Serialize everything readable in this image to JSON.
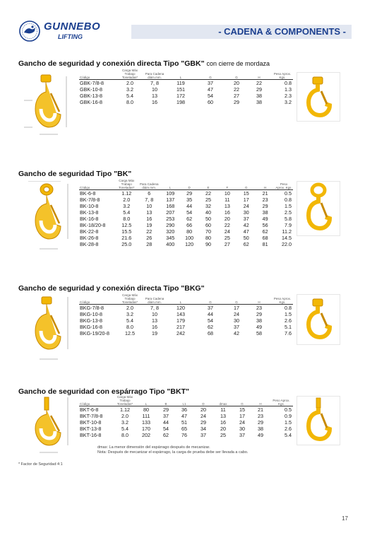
{
  "header": {
    "brand": "GUNNEBO",
    "brand_sub": "LIFTING",
    "banner": "- CADENA & COMPONENTS -"
  },
  "colors": {
    "hook_yellow": "#f2b705",
    "hook_dark": "#c88a00",
    "brand_blue": "#1b3f8f",
    "banner_bg": "#e2e7f1"
  },
  "sections": [
    {
      "title": "Gancho de seguridad y conexión directa Tipo \"GBK\"",
      "title_suffix": "con cierre de mordaza",
      "headers": [
        "Código",
        "Carga Máx Trabajo Toneladas*",
        "Para Cadena diám.mm.",
        "L",
        "G",
        "G",
        "H",
        "Peso Aprox. Kgs."
      ],
      "rows": [
        [
          "GBK-7/8-8",
          "2.0",
          "7, 8",
          "119",
          "37",
          "20",
          "22",
          "0.8"
        ],
        [
          "GBK-10-8",
          "3.2",
          "10",
          "151",
          "47",
          "22",
          "29",
          "1.3"
        ],
        [
          "GBK-13-8",
          "5.4",
          "13",
          "172",
          "54",
          "27",
          "38",
          "2.3"
        ],
        [
          "GBK-16-8",
          "8.0",
          "16",
          "198",
          "60",
          "29",
          "38",
          "3.2"
        ]
      ]
    },
    {
      "title": "Gancho de seguridad Tipo \"BK\"",
      "title_suffix": "",
      "headers": [
        "Código",
        "Carga Máx Trabajo Toneladas*",
        "Para Cadena diám.mm.",
        "L",
        "D",
        "E",
        "F",
        "G",
        "H",
        "Peso Aprox. Kgs."
      ],
      "rows": [
        [
          "BK-6-8",
          "1.12",
          "6",
          "109",
          "29",
          "22",
          "10",
          "15",
          "21",
          "0.5"
        ],
        [
          "BK-7/8-8",
          "2.0",
          "7, 8",
          "137",
          "35",
          "25",
          "11",
          "17",
          "23",
          "0.8"
        ],
        [
          "BK-10-8",
          "3.2",
          "10",
          "168",
          "44",
          "32",
          "13",
          "24",
          "29",
          "1.5"
        ],
        [
          "BK-13-8",
          "5.4",
          "13",
          "207",
          "54",
          "40",
          "16",
          "30",
          "38",
          "2.5"
        ],
        [
          "BK-16-8",
          "8.0",
          "16",
          "253",
          "62",
          "50",
          "20",
          "37",
          "49",
          "5.8"
        ],
        [
          "BK-18/20-8",
          "12.5",
          "19",
          "290",
          "66",
          "60",
          "22",
          "42",
          "56",
          "7.9"
        ],
        [
          "BK-22-8",
          "15.5",
          "22",
          "320",
          "80",
          "70",
          "24",
          "47",
          "62",
          "11.2"
        ],
        [
          "BK-26-8",
          "21.6",
          "26",
          "345",
          "100",
          "80",
          "25",
          "50",
          "68",
          "14.5"
        ],
        [
          "BK-28-8",
          "25.0",
          "28",
          "400",
          "120",
          "90",
          "27",
          "62",
          "81",
          "22.0"
        ]
      ]
    },
    {
      "title": "Gancho de seguridad y conexión directa Tipo \"BKG\"",
      "title_suffix": "",
      "headers": [
        "Código",
        "Carga Máx Trabajo Toneladas*",
        "Para Cadena diám.mm.",
        "L",
        "G",
        "G",
        "H",
        "Peso Aprox. Kgs."
      ],
      "rows": [
        [
          "BKG-7/8-8",
          "2.0",
          "7, 8",
          "120",
          "37",
          "17",
          "23",
          "0.8"
        ],
        [
          "BKG-10-8",
          "3.2",
          "10",
          "143",
          "44",
          "24",
          "29",
          "1.5"
        ],
        [
          "BKG-13-8",
          "5.4",
          "13",
          "179",
          "54",
          "30",
          "38",
          "2.6"
        ],
        [
          "BKG-16-8",
          "8.0",
          "16",
          "217",
          "62",
          "37",
          "49",
          "5.1"
        ],
        [
          "BKG-19/20-8",
          "12.5",
          "19",
          "242",
          "68",
          "42",
          "58",
          "7.6"
        ]
      ]
    },
    {
      "title": "Gancho de seguridad con espárrago Tipo \"BKT\"",
      "title_suffix": "",
      "headers": [
        "Código",
        "Carga Máx Trabajo Toneladas*",
        "L",
        "B",
        "L1",
        "D",
        "dmax",
        "G",
        "H",
        "Peso Aprox. Kgs."
      ],
      "rows": [
        [
          "BKT-6-8",
          "1.12",
          "80",
          "29",
          "36",
          "20",
          "11",
          "15",
          "21",
          "0.5"
        ],
        [
          "BKT-7/8-8",
          "2.0",
          "111",
          "37",
          "47",
          "24",
          "13",
          "17",
          "23",
          "0.9"
        ],
        [
          "BKT-10-8",
          "3.2",
          "133",
          "44",
          "51",
          "29",
          "16",
          "24",
          "29",
          "1.5"
        ],
        [
          "BKT-13-8",
          "5.4",
          "170",
          "54",
          "65",
          "34",
          "20",
          "30",
          "38",
          "2.6"
        ],
        [
          "BKT-16-8",
          "8.0",
          "202",
          "62",
          "76",
          "37",
          "25",
          "37",
          "49",
          "5.4"
        ]
      ],
      "notes": [
        "dmax: La menor dimensión del espárrago después de mecanizar.",
        "Nota: Después de mecanizar el espárrago, la carga de prueba debe ser llevada a cabo."
      ]
    }
  ],
  "footer": {
    "note": "* Factor de Seguridad 4:1",
    "page": "17"
  }
}
